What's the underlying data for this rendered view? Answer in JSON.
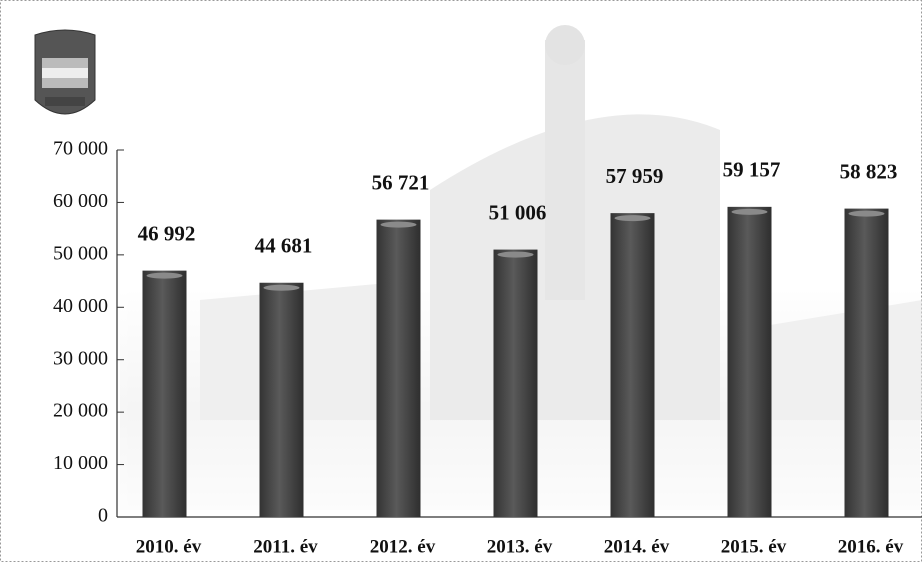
{
  "chart_data": {
    "type": "bar",
    "categories": [
      "2010. év",
      "2011. év",
      "2012. év",
      "2013. év",
      "2014. év",
      "2015. év",
      "2016. év"
    ],
    "values": [
      46992,
      44681,
      56721,
      51006,
      57959,
      59157,
      58823
    ],
    "value_labels": [
      "46 992",
      "44 681",
      "56 721",
      "51 006",
      "57 959",
      "59 157",
      "58 823"
    ],
    "color": "#4a4a4a",
    "ylim": [
      0,
      70000
    ],
    "yticks": [
      0,
      {
        "value": 10000,
        "label": "10 000"
      },
      {
        "value": 20000,
        "label": "20 000"
      },
      {
        "value": 30000,
        "label": "30 000"
      },
      {
        "value": 40000,
        "label": "40 000"
      },
      {
        "value": 50000,
        "label": "50 000"
      },
      {
        "value": 60000,
        "label": "60 000"
      },
      {
        "value": 70000,
        "label": "70 000"
      }
    ]
  }
}
